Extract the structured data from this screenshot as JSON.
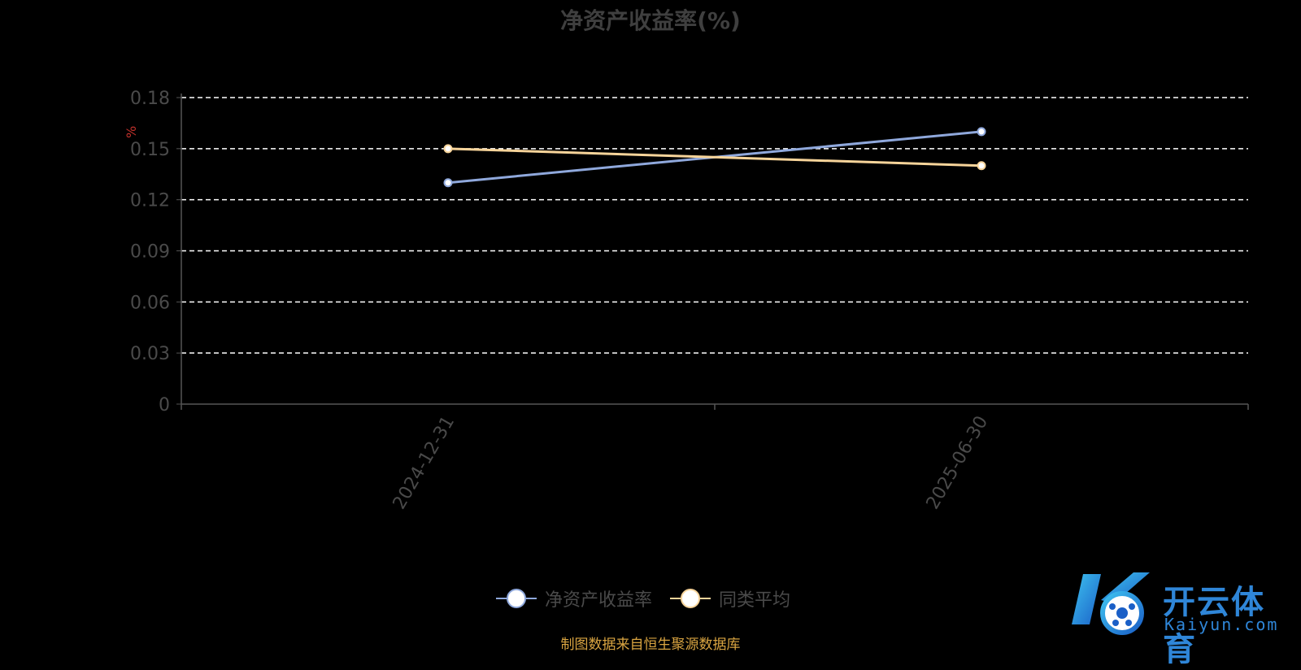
{
  "title": "净资产收益率(%)",
  "source": "制图数据来自恒生聚源数据库",
  "watermark": {
    "text": "开云体育",
    "sub": "Kaiyun.com"
  },
  "colors": {
    "series1": "#8fa8dc",
    "series2": "#f7d49a",
    "grid": "#ffffff",
    "axis": "#555555",
    "unit": "#c0312b"
  },
  "chart_data": {
    "type": "line",
    "title": "净资产收益率(%)",
    "x": [
      "2024-12-31",
      "2025-06-30"
    ],
    "ylabel": "%",
    "ylim": [
      0,
      0.18
    ],
    "yticks": [
      "0",
      "0.03",
      "0.06",
      "0.09",
      "0.12",
      "0.15",
      "0.18"
    ],
    "grid": true,
    "legend_position": "bottom",
    "series": [
      {
        "name": "净资产收益率",
        "values": [
          0.13,
          0.16
        ],
        "color": "#8fa8dc"
      },
      {
        "name": "同类平均",
        "values": [
          0.15,
          0.14
        ],
        "color": "#f7d49a"
      }
    ]
  }
}
